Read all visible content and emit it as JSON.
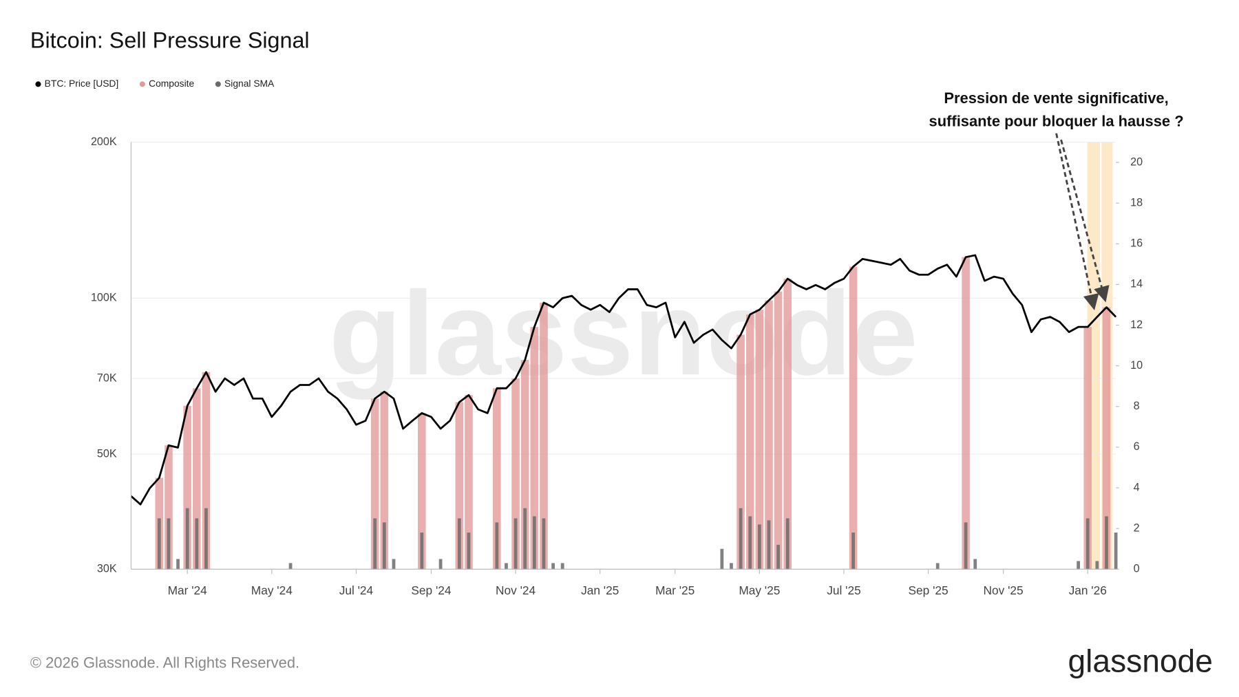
{
  "chart_data": {
    "type": "combo",
    "title": "Bitcoin: Sell Pressure Signal",
    "categories": [
      null,
      null,
      null,
      null,
      null,
      null,
      "Mar '24",
      null,
      null,
      null,
      null,
      null,
      null,
      null,
      null,
      "May '24",
      null,
      null,
      null,
      null,
      null,
      null,
      null,
      null,
      "Jul '24",
      null,
      null,
      null,
      null,
      null,
      null,
      null,
      "Sep '24",
      null,
      null,
      null,
      null,
      null,
      null,
      null,
      null,
      "Nov '24",
      null,
      null,
      null,
      null,
      null,
      null,
      null,
      null,
      "Jan '25",
      null,
      null,
      null,
      null,
      null,
      null,
      null,
      "Mar '25",
      null,
      null,
      null,
      null,
      null,
      null,
      null,
      null,
      "May '25",
      null,
      null,
      null,
      null,
      null,
      null,
      null,
      null,
      "Jul '25",
      null,
      null,
      null,
      null,
      null,
      null,
      null,
      null,
      "Sep '25",
      null,
      null,
      null,
      null,
      null,
      null,
      null,
      "Nov '25",
      null,
      null,
      null,
      null,
      null,
      null,
      null,
      null,
      "Jan '26",
      null,
      null,
      null
    ],
    "series": [
      {
        "name": "BTC: Price [USD]",
        "type": "line",
        "color": "#000000",
        "values": [
          41500,
          40000,
          43000,
          45000,
          52000,
          51500,
          62000,
          67000,
          72000,
          66000,
          70000,
          68000,
          70000,
          64000,
          64000,
          59000,
          62000,
          66000,
          68000,
          68000,
          70000,
          66000,
          64000,
          61000,
          57000,
          58000,
          64000,
          66000,
          64000,
          56000,
          58000,
          60000,
          59000,
          56000,
          58000,
          63000,
          65000,
          61000,
          60000,
          67000,
          67000,
          70000,
          76000,
          88000,
          98000,
          96000,
          100000,
          101000,
          97000,
          95000,
          97000,
          94000,
          100000,
          104000,
          104000,
          97000,
          96000,
          98000,
          84000,
          90000,
          82000,
          85000,
          87000,
          83000,
          80000,
          85000,
          93000,
          95000,
          99000,
          103000,
          109000,
          106000,
          104000,
          106000,
          104000,
          107000,
          109000,
          115000,
          119000,
          118000,
          117000,
          116000,
          119000,
          113000,
          111000,
          111000,
          114000,
          116000,
          110000,
          120000,
          121000,
          108000,
          110000,
          109000,
          102000,
          97000,
          86000,
          91000,
          92000,
          90000,
          86000,
          88000,
          88000,
          92000,
          96000,
          92000
        ]
      },
      {
        "name": "Composite",
        "type": "bar",
        "color": "#e39a9a",
        "values": [
          null,
          null,
          null,
          45000,
          52000,
          null,
          62000,
          67000,
          72000,
          null,
          null,
          null,
          null,
          null,
          null,
          null,
          null,
          null,
          null,
          null,
          null,
          null,
          null,
          null,
          null,
          null,
          64000,
          66000,
          null,
          null,
          null,
          60000,
          null,
          null,
          null,
          63000,
          65000,
          null,
          null,
          67000,
          null,
          70000,
          76000,
          88000,
          98000,
          null,
          null,
          null,
          null,
          null,
          null,
          null,
          null,
          null,
          null,
          null,
          null,
          null,
          null,
          null,
          null,
          null,
          null,
          null,
          null,
          85000,
          93000,
          95000,
          99000,
          103000,
          109000,
          null,
          null,
          null,
          null,
          null,
          null,
          115000,
          null,
          null,
          null,
          null,
          null,
          null,
          null,
          null,
          null,
          null,
          null,
          120000,
          null,
          null,
          null,
          null,
          null,
          null,
          null,
          null,
          null,
          null,
          null,
          null,
          88000,
          null,
          96000,
          null
        ]
      },
      {
        "name": "Signal SMA",
        "type": "bar",
        "axis": "y2",
        "color": "#6b6b6b",
        "values": [
          0,
          0,
          0,
          2.5,
          2.5,
          0.5,
          3,
          2.5,
          3,
          0,
          0,
          0,
          0,
          0,
          0,
          0,
          0,
          0.3,
          0,
          0,
          0,
          0,
          0,
          0,
          0,
          0,
          2.5,
          2.3,
          0.5,
          0,
          0,
          1.8,
          0,
          0.5,
          0,
          2.5,
          1.8,
          0,
          0,
          2.3,
          0.3,
          2.5,
          3,
          2.6,
          2.5,
          0.3,
          0.3,
          0,
          0,
          0,
          0,
          0,
          0,
          0,
          0,
          0,
          0,
          0,
          0,
          0,
          0,
          0,
          0,
          1,
          0.3,
          3,
          2.6,
          2.2,
          2.4,
          1.2,
          2.5,
          0,
          0,
          0,
          0,
          0,
          0,
          1.8,
          0,
          0,
          0,
          0,
          0,
          0,
          0,
          0,
          0.3,
          0,
          0,
          2.3,
          0.5,
          0,
          0,
          0,
          0,
          0,
          0,
          0,
          0,
          0,
          0,
          0.4,
          2.5,
          0.4,
          2.6,
          1.8
        ]
      }
    ],
    "ylog": true,
    "ylim": [
      30000,
      200000
    ],
    "yticks": [
      {
        "value": 30000,
        "label": "30K"
      },
      {
        "value": 50000,
        "label": "50K"
      },
      {
        "value": 70000,
        "label": "70K"
      },
      {
        "value": 100000,
        "label": "100K"
      },
      {
        "value": 200000,
        "label": "200K"
      }
    ],
    "y2lim": [
      0,
      21
    ],
    "y2ticks": [
      0,
      2,
      4,
      6,
      8,
      10,
      12,
      14,
      16,
      18,
      20
    ],
    "grid": true,
    "legend": "top-left",
    "annotation": [
      "Pression de vente significative,",
      "suffisante pour bloquer la hausse ?"
    ]
  },
  "watermark": "glassnode",
  "footer": "© 2026 Glassnode. All Rights Reserved.",
  "logo": "glassnode"
}
